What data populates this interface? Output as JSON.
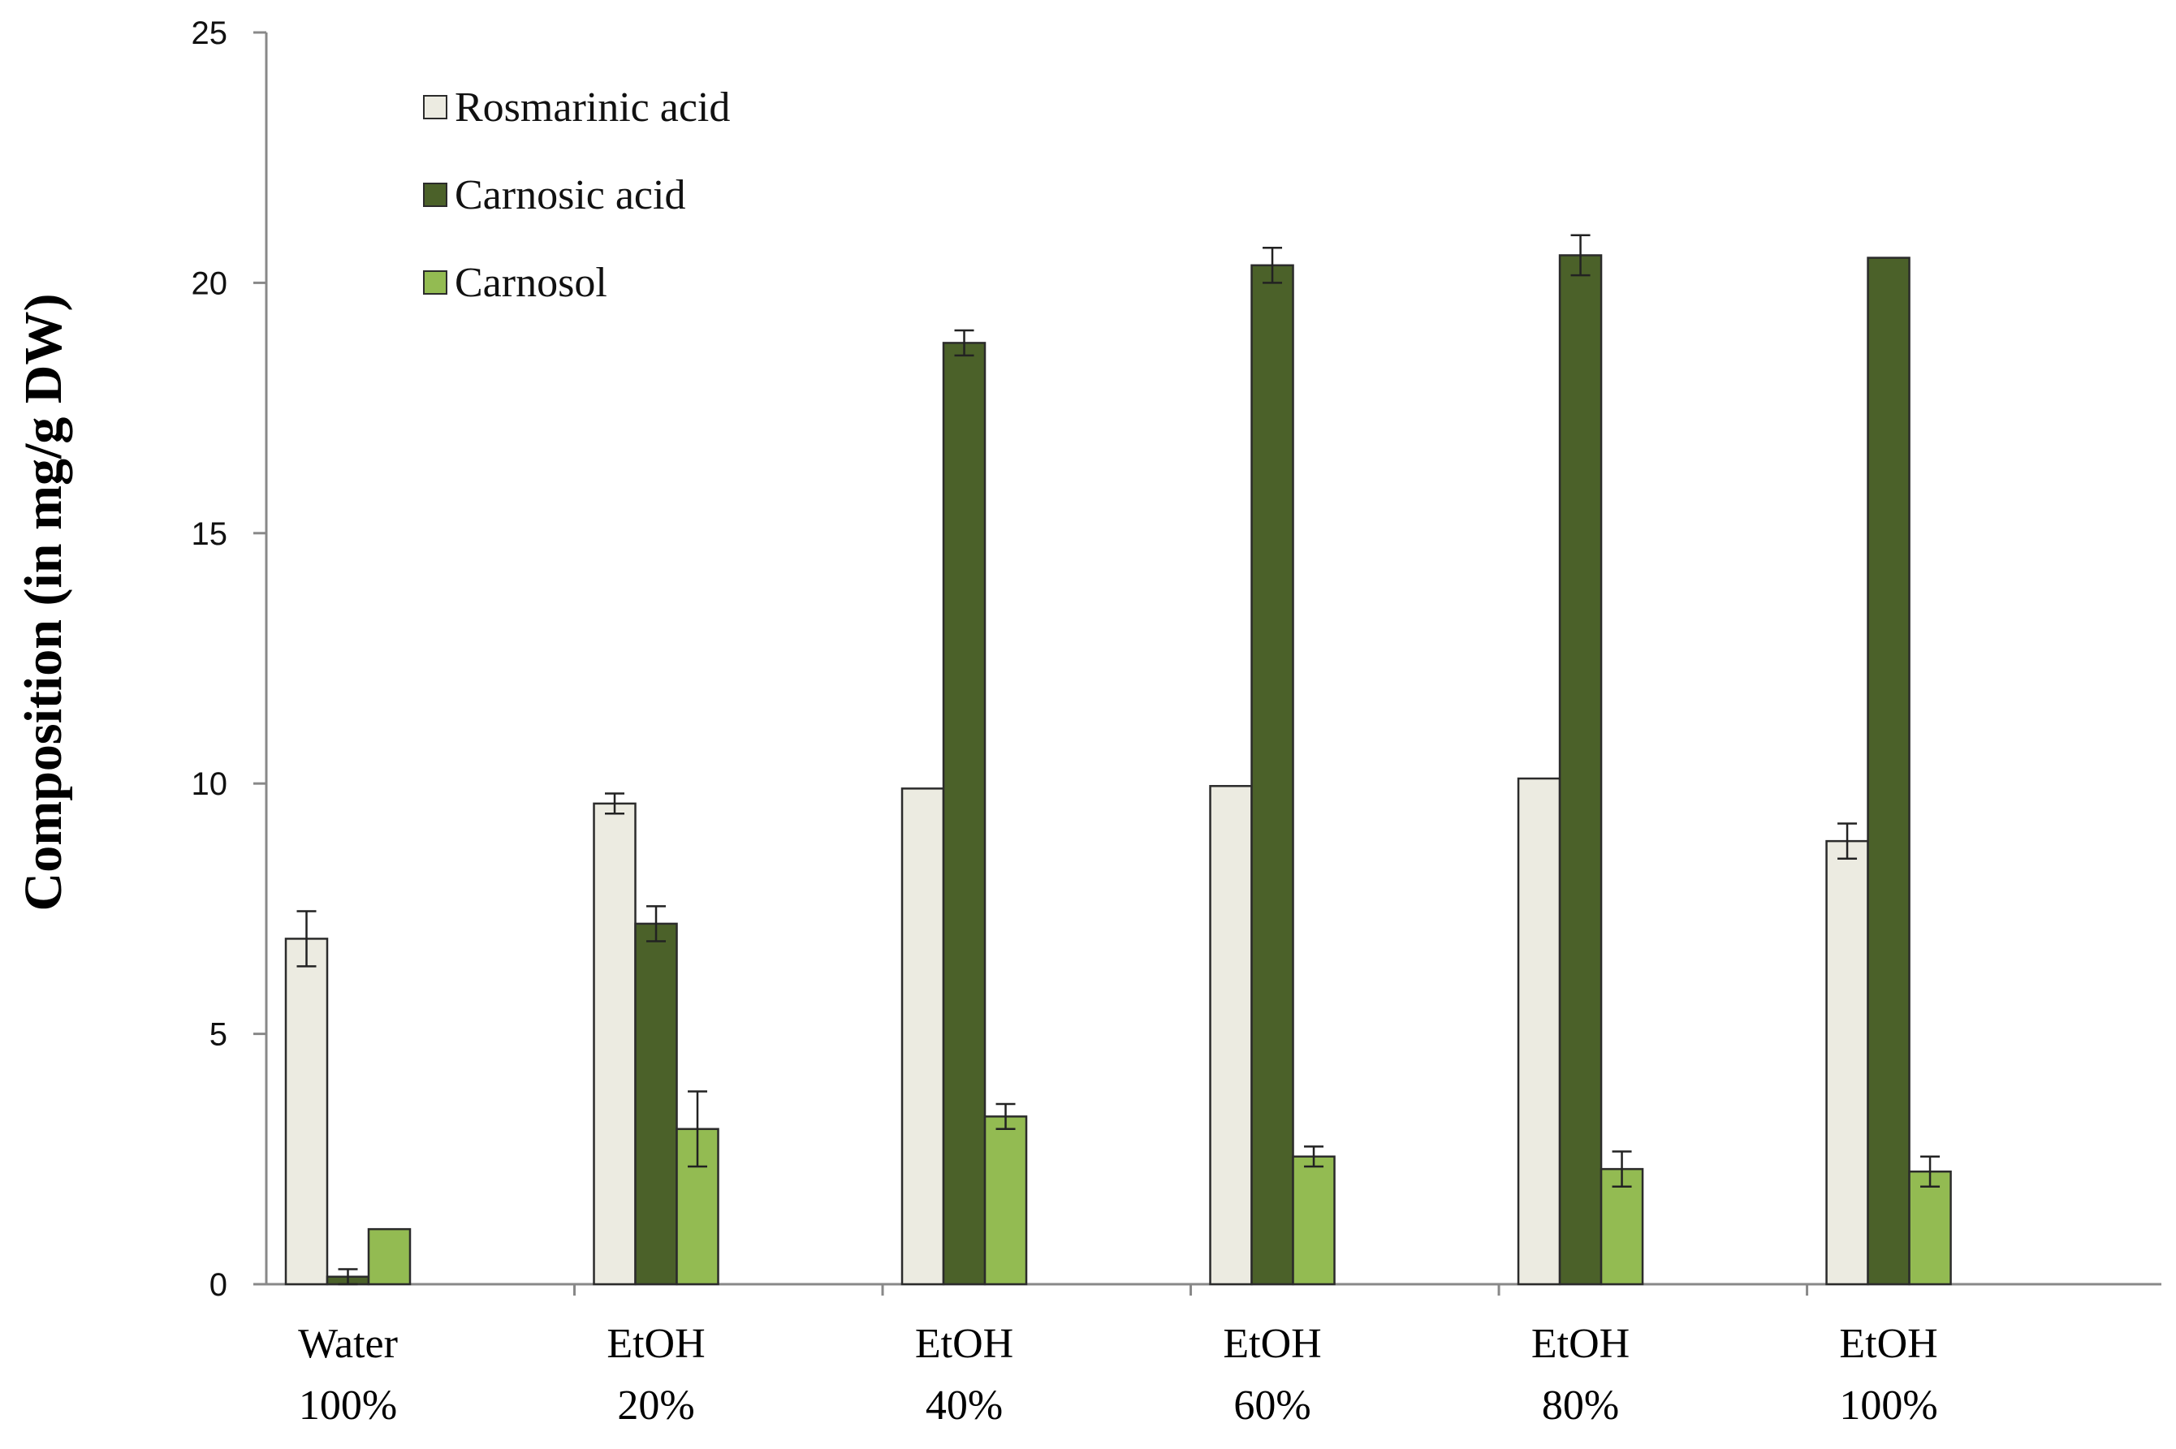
{
  "chart_data": {
    "type": "bar",
    "title": "",
    "xlabel": "",
    "ylabel": "Composition (in mg/g DW)",
    "ylim": [
      0,
      25
    ],
    "yticks": [
      0,
      5,
      10,
      15,
      20,
      25
    ],
    "grid": false,
    "legend_position": "top-left",
    "categories": [
      [
        "Water",
        "100%"
      ],
      [
        "EtOH",
        "20%"
      ],
      [
        "EtOH",
        "40%"
      ],
      [
        "EtOH",
        "60%"
      ],
      [
        "EtOH",
        "80%"
      ],
      [
        "EtOH",
        "100%"
      ]
    ],
    "series": [
      {
        "name": "Rosmarinic acid",
        "color": "#ecebe1",
        "values": [
          6.9,
          9.6,
          9.9,
          9.95,
          10.1,
          8.85
        ],
        "errors": [
          0.55,
          0.2,
          0.0,
          0.0,
          0.0,
          0.35
        ]
      },
      {
        "name": "Carnosic acid",
        "color": "#4b6129",
        "values": [
          0.15,
          7.2,
          18.8,
          20.35,
          20.55,
          20.5
        ],
        "errors": [
          0.15,
          0.35,
          0.25,
          0.35,
          0.4,
          0.0
        ]
      },
      {
        "name": "Carnosol",
        "color": "#93bb52",
        "values": [
          1.1,
          3.1,
          3.35,
          2.55,
          2.3,
          2.25
        ],
        "errors": [
          0.0,
          0.75,
          0.25,
          0.2,
          0.35,
          0.3
        ]
      }
    ]
  }
}
